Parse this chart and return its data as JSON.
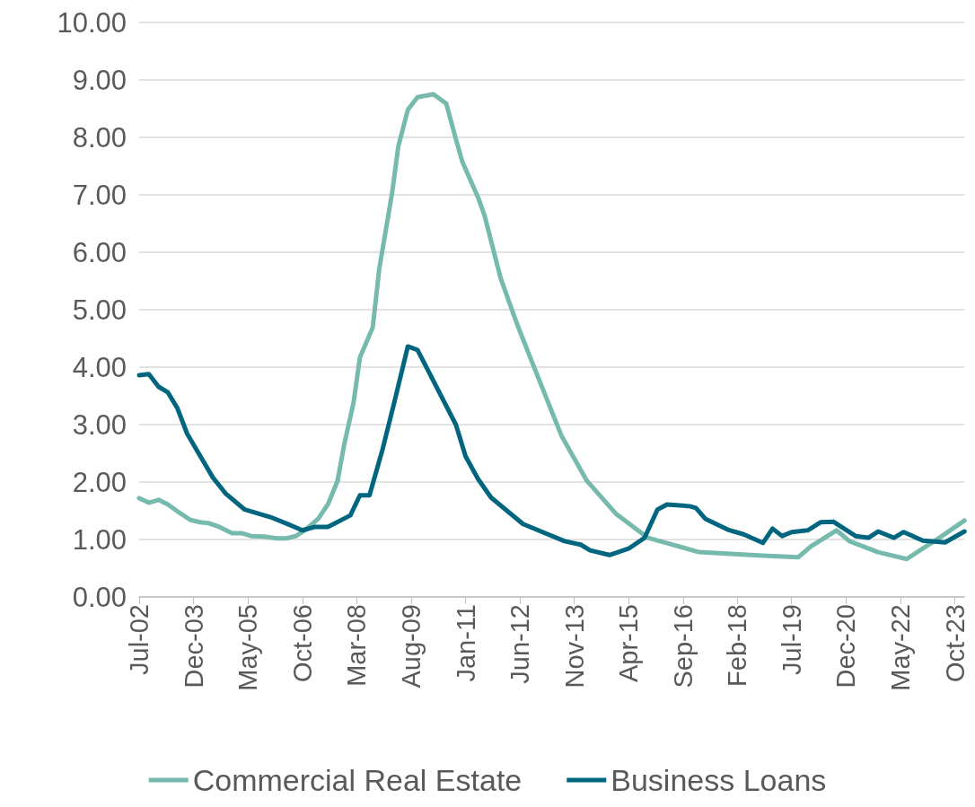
{
  "chart_data": {
    "type": "line",
    "xlim": [
      "2002-07",
      "2024-01"
    ],
    "xticks": [
      {
        "value": "2002-07",
        "label": "Jul-02"
      },
      {
        "value": "2003-12",
        "label": "Dec-03"
      },
      {
        "value": "2005-05",
        "label": "May-05"
      },
      {
        "value": "2006-10",
        "label": "Oct-06"
      },
      {
        "value": "2008-03",
        "label": "Mar-08"
      },
      {
        "value": "2009-08",
        "label": "Aug-09"
      },
      {
        "value": "2011-01",
        "label": "Jan-11"
      },
      {
        "value": "2012-06",
        "label": "Jun-12"
      },
      {
        "value": "2013-11",
        "label": "Nov-13"
      },
      {
        "value": "2015-04",
        "label": "Apr-15"
      },
      {
        "value": "2016-09",
        "label": "Sep-16"
      },
      {
        "value": "2018-02",
        "label": "Feb-18"
      },
      {
        "value": "2019-07",
        "label": "Jul-19"
      },
      {
        "value": "2020-12",
        "label": "Dec-20"
      },
      {
        "value": "2022-05",
        "label": "May-22"
      },
      {
        "value": "2023-10",
        "label": "Oct-23"
      }
    ],
    "ylim": [
      0,
      10
    ],
    "yticks": [
      {
        "value": 0,
        "label": "0.00"
      },
      {
        "value": 1,
        "label": "1.00"
      },
      {
        "value": 2,
        "label": "2.00"
      },
      {
        "value": 3,
        "label": "3.00"
      },
      {
        "value": 4,
        "label": "4.00"
      },
      {
        "value": 5,
        "label": "5.00"
      },
      {
        "value": 6,
        "label": "6.00"
      },
      {
        "value": 7,
        "label": "7.00"
      },
      {
        "value": 8,
        "label": "8.00"
      },
      {
        "value": 9,
        "label": "9.00"
      },
      {
        "value": 10,
        "label": "10.00"
      }
    ],
    "grid": "y",
    "legend": "bottom",
    "marker": "none",
    "line_style": "solid",
    "series": [
      {
        "name": "Commercial Real Estate",
        "color": "#76b9ad",
        "x": [
          "2002-07",
          "2002-10",
          "2003-01",
          "2003-04",
          "2003-08",
          "2003-11",
          "2004-02",
          "2004-05",
          "2004-08",
          "2004-12",
          "2005-03",
          "2005-06",
          "2005-10",
          "2006-02",
          "2006-05",
          "2006-08",
          "2006-11",
          "2007-03",
          "2007-06",
          "2007-09",
          "2007-11",
          "2008-02",
          "2008-04",
          "2008-08",
          "2008-10",
          "2009-02",
          "2009-04",
          "2009-07",
          "2009-10",
          "2010-03",
          "2010-07",
          "2010-10",
          "2010-12",
          "2011-05",
          "2011-07",
          "2011-12",
          "2012-05",
          "2012-10",
          "2013-07",
          "2014-03",
          "2014-12",
          "2015-10",
          "2017-02",
          "2018-10",
          "2019-09",
          "2020-01",
          "2020-09",
          "2021-01",
          "2021-10",
          "2022-07",
          "2023-06",
          "2024-01"
        ],
        "values": [
          1.72,
          1.64,
          1.69,
          1.61,
          1.45,
          1.34,
          1.3,
          1.28,
          1.22,
          1.11,
          1.11,
          1.06,
          1.05,
          1.02,
          1.02,
          1.06,
          1.17,
          1.36,
          1.61,
          2.02,
          2.63,
          3.39,
          4.17,
          4.69,
          5.7,
          7.03,
          7.84,
          8.48,
          8.7,
          8.75,
          8.59,
          7.97,
          7.58,
          6.95,
          6.64,
          5.55,
          4.77,
          4.06,
          2.81,
          2.02,
          1.45,
          1.03,
          0.78,
          0.72,
          0.69,
          0.88,
          1.16,
          0.97,
          0.78,
          0.66,
          1.06,
          1.33
        ]
      },
      {
        "name": "Business Loans",
        "color": "#006680",
        "x": [
          "2002-07",
          "2002-10",
          "2003-01",
          "2003-04",
          "2003-07",
          "2003-10",
          "2004-06",
          "2004-10",
          "2005-04",
          "2005-12",
          "2006-05",
          "2006-10",
          "2007-02",
          "2007-06",
          "2008-01",
          "2008-04",
          "2008-07",
          "2008-11",
          "2009-03",
          "2009-07",
          "2009-10",
          "2010-02",
          "2010-10",
          "2011-01",
          "2011-05",
          "2011-09",
          "2012-07",
          "2013-08",
          "2014-01",
          "2014-04",
          "2014-10",
          "2015-04",
          "2015-09",
          "2016-01",
          "2016-04",
          "2016-11",
          "2017-01",
          "2017-04",
          "2017-11",
          "2018-04",
          "2018-10",
          "2019-01",
          "2019-04",
          "2019-07",
          "2019-12",
          "2020-04",
          "2020-08",
          "2021-03",
          "2021-07",
          "2021-10",
          "2022-03",
          "2022-06",
          "2022-12",
          "2023-07",
          "2024-01"
        ],
        "values": [
          3.86,
          3.88,
          3.66,
          3.56,
          3.28,
          2.84,
          2.08,
          1.8,
          1.52,
          1.39,
          1.28,
          1.16,
          1.22,
          1.22,
          1.42,
          1.77,
          1.77,
          2.56,
          3.44,
          4.36,
          4.3,
          3.86,
          3.0,
          2.45,
          2.05,
          1.73,
          1.27,
          0.97,
          0.91,
          0.81,
          0.73,
          0.84,
          1.03,
          1.52,
          1.61,
          1.58,
          1.55,
          1.36,
          1.17,
          1.09,
          0.94,
          1.19,
          1.06,
          1.13,
          1.16,
          1.3,
          1.31,
          1.06,
          1.03,
          1.14,
          1.03,
          1.13,
          0.98,
          0.95,
          1.14
        ]
      }
    ]
  }
}
